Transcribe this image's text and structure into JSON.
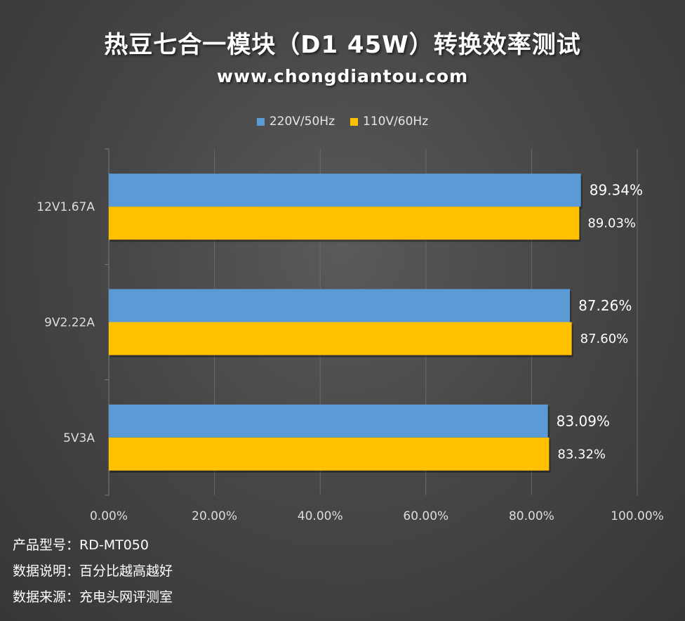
{
  "title": "热豆七合一模块（D1 45W）转换效率测试",
  "website": "www.chongdiantou.com",
  "colors": {
    "series1": "#5b9bd5",
    "series2": "#ffc000"
  },
  "chart_data": {
    "type": "bar",
    "orientation": "horizontal",
    "categories": [
      "12V1.67A",
      "9V2.22A",
      "5V3A"
    ],
    "series": [
      {
        "name": "220V/50Hz",
        "values": [
          89.34,
          87.26,
          83.09
        ],
        "labels": [
          "89.34%",
          "87.26%",
          "83.09%"
        ]
      },
      {
        "name": "110V/60Hz",
        "values": [
          89.03,
          87.6,
          83.32
        ],
        "labels": [
          "89.03%",
          "87.60%",
          "83.32%"
        ]
      }
    ],
    "xlim": [
      0,
      100
    ],
    "xticks": [
      0,
      20,
      40,
      60,
      80,
      100
    ],
    "xtick_labels": [
      "0.00%",
      "20.00%",
      "40.00%",
      "60.00%",
      "80.00%",
      "100.00%"
    ],
    "legend_position": "top-center",
    "grid": true
  },
  "notes": [
    {
      "label": "产品型号：",
      "value": "RD-MT050"
    },
    {
      "label": "数据说明：",
      "value": "百分比越高越好"
    },
    {
      "label": "数据来源：",
      "value": "充电头网评测室"
    }
  ]
}
